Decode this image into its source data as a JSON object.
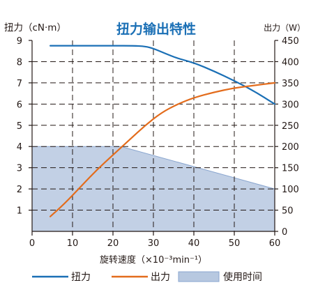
{
  "chart_data": {
    "type": "line",
    "title": "扭力输出特性",
    "xlabel": "旋转速度（×10⁻³min⁻¹）",
    "ylabel_left": "扭力（cN·m）",
    "ylabel_right": "出力（W）",
    "xlim": [
      0,
      60
    ],
    "ylim_left": [
      0,
      9
    ],
    "ylim_right": [
      0,
      450
    ],
    "x_ticks": [
      "0",
      "10",
      "20",
      "30",
      "40",
      "50",
      "60"
    ],
    "y_left_ticks": [
      "1",
      "2",
      "3",
      "4",
      "5",
      "6",
      "7",
      "8",
      "9"
    ],
    "y_right_ticks": [
      "0",
      "50",
      "100",
      "150",
      "200",
      "250",
      "300",
      "350",
      "400",
      "450"
    ],
    "grid": "dashed vertical and horizontal",
    "legend_position": "bottom",
    "series": [
      {
        "name": "扭力",
        "axis": "left",
        "color": "#1a6fb5",
        "x": [
          4.5,
          10,
          15,
          20,
          25,
          28,
          30,
          33,
          36,
          40,
          45,
          50,
          55,
          60
        ],
        "y": [
          8.75,
          8.75,
          8.75,
          8.75,
          8.75,
          8.72,
          8.62,
          8.38,
          8.15,
          7.95,
          7.55,
          7.1,
          6.6,
          6.0
        ]
      },
      {
        "name": "出力",
        "axis": "right",
        "color": "#e36c1c",
        "x": [
          4.5,
          8,
          12,
          16,
          20,
          24,
          28,
          32,
          36,
          40,
          45,
          50,
          55,
          60
        ],
        "y": [
          35,
          65,
          105,
          145,
          180,
          215,
          250,
          280,
          300,
          315,
          328,
          338,
          344,
          350
        ]
      },
      {
        "name": "使用时间",
        "type": "area",
        "axis": "left",
        "color": "#b7c8e0",
        "edge_color": "#8aa6cf",
        "x": [
          0,
          22,
          60
        ],
        "y": [
          4,
          4,
          2
        ]
      }
    ]
  }
}
